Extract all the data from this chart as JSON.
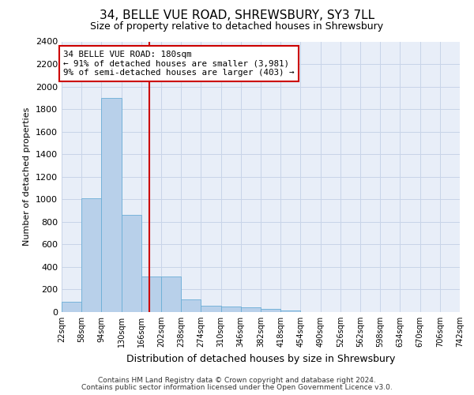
{
  "title": "34, BELLE VUE ROAD, SHREWSBURY, SY3 7LL",
  "subtitle": "Size of property relative to detached houses in Shrewsbury",
  "xlabel": "Distribution of detached houses by size in Shrewsbury",
  "ylabel": "Number of detached properties",
  "bar_color": "#b8d0ea",
  "bar_edge_color": "#6aaed6",
  "background_color": "#e8eef8",
  "vline_x": 180,
  "vline_color": "#cc0000",
  "annotation_line1": "34 BELLE VUE ROAD: 180sqm",
  "annotation_line2": "← 91% of detached houses are smaller (3,981)",
  "annotation_line3": "9% of semi-detached houses are larger (403) →",
  "bin_edges": [
    22,
    58,
    94,
    130,
    166,
    202,
    238,
    274,
    310,
    346,
    382,
    418,
    454,
    490,
    526,
    562,
    598,
    634,
    670,
    706,
    742
  ],
  "bin_labels": [
    "22sqm",
    "58sqm",
    "94sqm",
    "130sqm",
    "166sqm",
    "202sqm",
    "238sqm",
    "274sqm",
    "310sqm",
    "346sqm",
    "382sqm",
    "418sqm",
    "454sqm",
    "490sqm",
    "526sqm",
    "562sqm",
    "598sqm",
    "634sqm",
    "670sqm",
    "706sqm",
    "742sqm"
  ],
  "bar_heights": [
    90,
    1010,
    1900,
    860,
    315,
    315,
    115,
    55,
    50,
    45,
    25,
    15,
    0,
    0,
    0,
    0,
    0,
    0,
    0,
    0
  ],
  "ylim": [
    0,
    2400
  ],
  "yticks": [
    0,
    200,
    400,
    600,
    800,
    1000,
    1200,
    1400,
    1600,
    1800,
    2000,
    2200,
    2400
  ],
  "footer_line1": "Contains HM Land Registry data © Crown copyright and database right 2024.",
  "footer_line2": "Contains public sector information licensed under the Open Government Licence v3.0.",
  "grid_color": "#c8d4e8",
  "title_fontsize": 11,
  "subtitle_fontsize": 9
}
